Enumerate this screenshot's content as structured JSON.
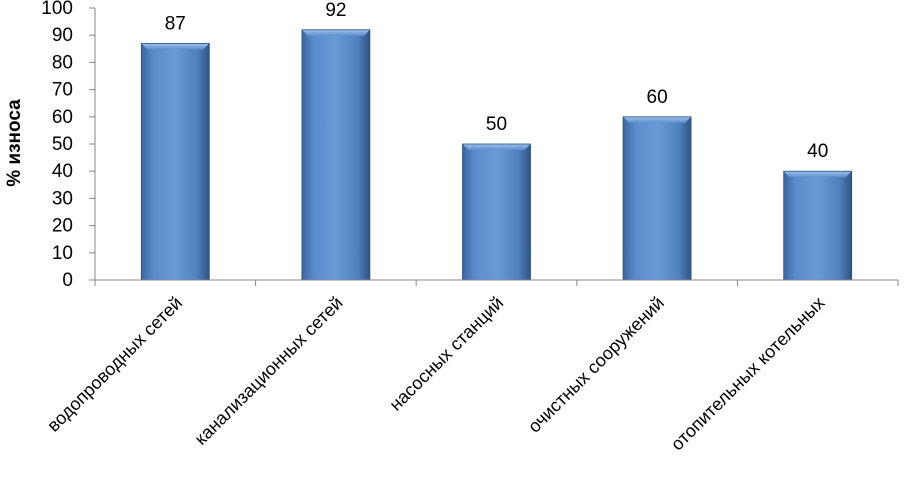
{
  "chart_data": {
    "type": "bar",
    "title": "",
    "xlabel": "",
    "ylabel": "% износа",
    "ylim": [
      0,
      100
    ],
    "yticks": [
      0,
      10,
      20,
      30,
      40,
      50,
      60,
      70,
      80,
      90,
      100
    ],
    "grid": false,
    "legend": "none",
    "bar_color": "#4f81bd",
    "categories": [
      "водопроводных сетей",
      "канализационных сетей",
      "насосных станций",
      "очистных сооружений",
      "отопительных котельных"
    ],
    "values": [
      87,
      92,
      50,
      60,
      40
    ],
    "data_labels": [
      "87",
      "92",
      "50",
      "60",
      "40"
    ]
  }
}
